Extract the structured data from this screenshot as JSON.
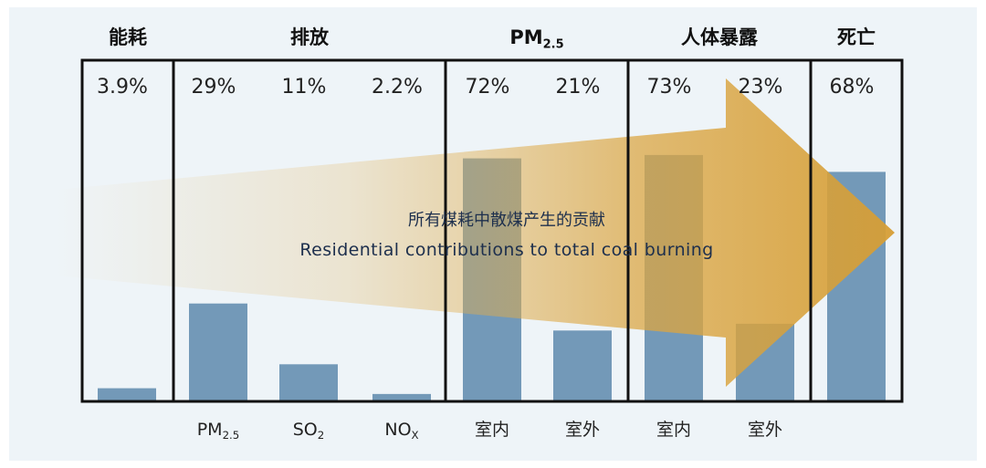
{
  "chart_data": {
    "type": "bar",
    "groups": [
      {
        "label": "能耗",
        "bars": [
          {
            "category": "",
            "value": 3.9,
            "label": "3.9%"
          }
        ]
      },
      {
        "label": "排放",
        "bars": [
          {
            "category": "PM",
            "sub": "2.5",
            "value": 29,
            "label": "29%"
          },
          {
            "category": "SO",
            "sub": "2",
            "value": 11,
            "label": "11%"
          },
          {
            "category": "NO",
            "sub": "X",
            "value": 2.2,
            "label": "2.2%"
          }
        ]
      },
      {
        "label": "PM",
        "label_sub": "2.5",
        "bars": [
          {
            "category": "室内",
            "value": 72,
            "label": "72%"
          },
          {
            "category": "室外",
            "value": 21,
            "label": "21%"
          }
        ]
      },
      {
        "label": "人体暴露",
        "bars": [
          {
            "category": "室内",
            "value": 73,
            "label": "73%"
          },
          {
            "category": "室外",
            "value": 23,
            "label": "23%"
          }
        ]
      },
      {
        "label": "死亡",
        "bars": [
          {
            "category": "",
            "value": 68,
            "label": "68%"
          }
        ]
      }
    ],
    "ylim": [
      0,
      100
    ],
    "grid": false,
    "bar_color": "#7399b8",
    "arrow_color": "#d9a440",
    "annotation": {
      "zh": "所有煤耗中散煤产生的贡献",
      "en": "Residential contributions to total coal burning"
    }
  }
}
